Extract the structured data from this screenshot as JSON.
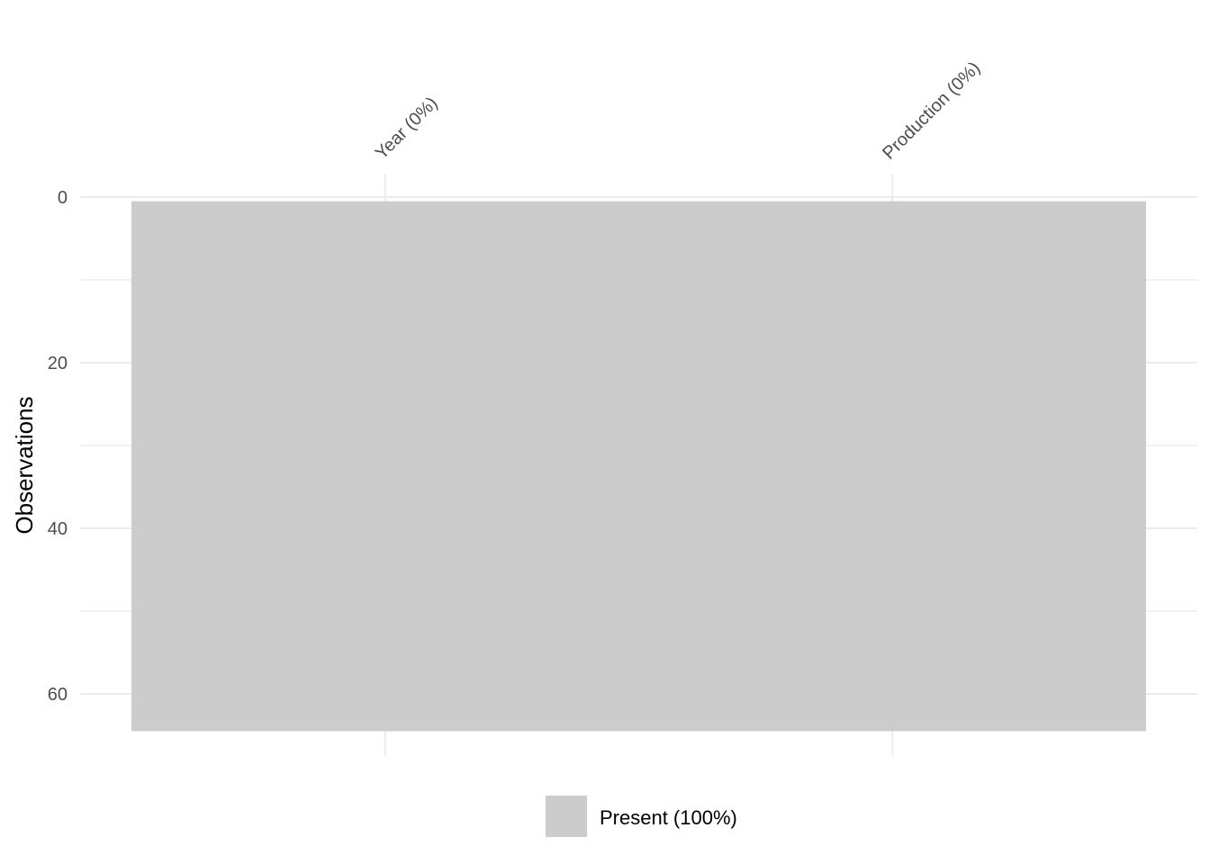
{
  "chart_data": {
    "type": "heatmap",
    "title": "",
    "xlabel": "",
    "ylabel": "Observations",
    "variables": [
      "Year (0%)",
      "Production (0%)"
    ],
    "n_observations": 64,
    "ylim": [
      0,
      65
    ],
    "y_ticks": [
      0,
      20,
      40,
      60
    ],
    "y_reversed": true,
    "x_axis_position": "top",
    "cells": [
      {
        "variable": "Year (0%)",
        "start": 1,
        "end": 64,
        "status": "Present"
      },
      {
        "variable": "Production (0%)",
        "start": 1,
        "end": 64,
        "status": "Present"
      }
    ],
    "legend": [
      {
        "label": "Present (100%)",
        "color": "#cccccc"
      }
    ],
    "legend_position": "bottom",
    "grid": true
  },
  "colors": {
    "present": "#cccccc",
    "grid": "#ebebeb",
    "tick_text": "#4d4d4d"
  }
}
